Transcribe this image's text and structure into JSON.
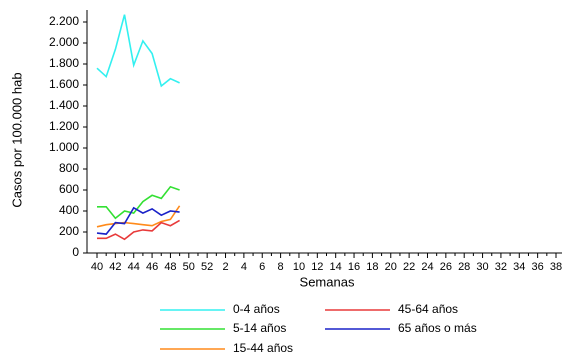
{
  "chart_data": {
    "type": "line",
    "ylabel": "Casos por 100.000 hab",
    "xlabel": "Semanas",
    "categories": [
      40,
      null,
      42,
      null,
      44,
      null,
      46,
      null,
      48,
      null,
      50,
      null,
      52,
      null,
      2,
      null,
      4,
      null,
      6,
      null,
      8,
      null,
      10,
      null,
      12,
      null,
      14,
      null,
      16,
      null,
      18,
      null,
      20,
      null,
      22,
      null,
      24,
      null,
      26,
      null,
      28,
      null,
      30,
      null,
      32,
      null,
      34,
      null,
      36,
      null,
      38
    ],
    "ylim": [
      0,
      2200
    ],
    "yticks": [
      0,
      200,
      400,
      600,
      800,
      {
        "value": 1000,
        "label": "1.000"
      },
      {
        "value": 1200,
        "label": "1.200"
      },
      {
        "value": 1400,
        "label": "1.400"
      },
      {
        "value": 1600,
        "label": "1.600"
      },
      {
        "value": 1800,
        "label": "1.800"
      },
      {
        "value": 2000,
        "label": "2.000"
      },
      {
        "value": 2200,
        "label": "2.200"
      }
    ],
    "grid": false,
    "legend": "bottom",
    "series": [
      {
        "name": "0-4 años",
        "color": "#33f0f0",
        "values": [
          1760,
          1680,
          1940,
          2270,
          1790,
          2020,
          1900,
          1590,
          1660,
          1620,
          null,
          null,
          null,
          null,
          null,
          null,
          null,
          null,
          null,
          null,
          null,
          null,
          null,
          null,
          null,
          null,
          null,
          null,
          null,
          null,
          null,
          null,
          null,
          null,
          null,
          null,
          null,
          null,
          null,
          null,
          null,
          null,
          null,
          null,
          null,
          null,
          null,
          null,
          null,
          null,
          null
        ]
      },
      {
        "name": "5-14 años",
        "color": "#33e033",
        "values": [
          440,
          440,
          330,
          400,
          380,
          490,
          550,
          520,
          630,
          600,
          null,
          null,
          null,
          null,
          null,
          null,
          null,
          null,
          null,
          null,
          null,
          null,
          null,
          null,
          null,
          null,
          null,
          null,
          null,
          null,
          null,
          null,
          null,
          null,
          null,
          null,
          null,
          null,
          null,
          null,
          null,
          null,
          null,
          null,
          null,
          null,
          null,
          null,
          null,
          null,
          null
        ]
      },
      {
        "name": "15-44 años",
        "color": "#ff8a1a",
        "values": [
          250,
          270,
          280,
          290,
          280,
          270,
          260,
          300,
          320,
          450,
          null,
          null,
          null,
          null,
          null,
          null,
          null,
          null,
          null,
          null,
          null,
          null,
          null,
          null,
          null,
          null,
          null,
          null,
          null,
          null,
          null,
          null,
          null,
          null,
          null,
          null,
          null,
          null,
          null,
          null,
          null,
          null,
          null,
          null,
          null,
          null,
          null,
          null,
          null,
          null,
          null
        ]
      },
      {
        "name": "45-64 años",
        "color": "#e83a3a",
        "values": [
          140,
          140,
          180,
          130,
          200,
          220,
          210,
          290,
          260,
          310,
          null,
          null,
          null,
          null,
          null,
          null,
          null,
          null,
          null,
          null,
          null,
          null,
          null,
          null,
          null,
          null,
          null,
          null,
          null,
          null,
          null,
          null,
          null,
          null,
          null,
          null,
          null,
          null,
          null,
          null,
          null,
          null,
          null,
          null,
          null,
          null,
          null,
          null,
          null,
          null,
          null
        ]
      },
      {
        "name": "65 años o más",
        "color": "#1a22c8",
        "values": [
          190,
          180,
          290,
          280,
          430,
          380,
          420,
          360,
          400,
          390,
          null,
          null,
          null,
          null,
          null,
          null,
          null,
          null,
          null,
          null,
          null,
          null,
          null,
          null,
          null,
          null,
          null,
          null,
          null,
          null,
          null,
          null,
          null,
          null,
          null,
          null,
          null,
          null,
          null,
          null,
          null,
          null,
          null,
          null,
          null,
          null,
          null,
          null,
          null,
          null,
          null
        ]
      }
    ]
  }
}
